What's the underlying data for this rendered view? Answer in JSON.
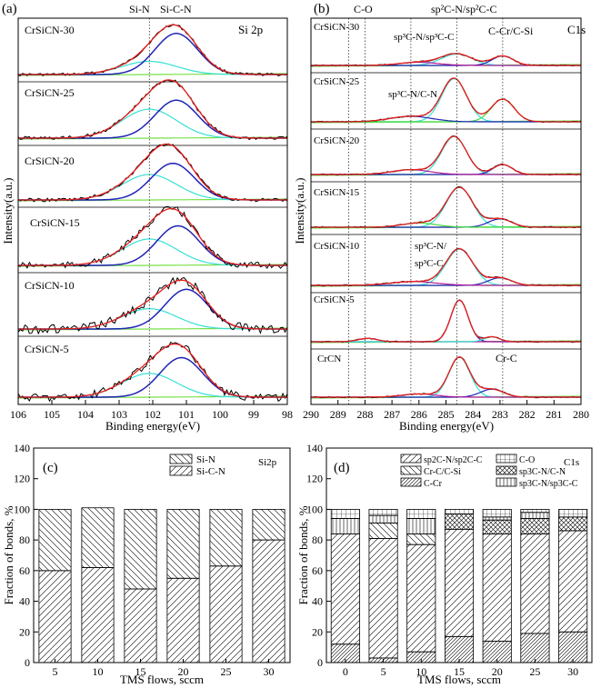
{
  "panels": {
    "a": {
      "label": "(a)",
      "tag": "Si 2p",
      "xlabel": "Binding energy(eV)",
      "ylabel": "Intensity(a.u.)",
      "xlim": [
        106,
        98
      ],
      "xticks": [
        106,
        105,
        104,
        103,
        102,
        101,
        100,
        99,
        98
      ],
      "peak_labels": [
        "Si-N",
        "Si-C-N"
      ],
      "samples": [
        "CrSiCN-30",
        "CrSiCN-25",
        "CrSiCN-20",
        "CrSiCN-15",
        "CrSiCN-10",
        "CrSiCN-5"
      ]
    },
    "b": {
      "label": "(b)",
      "tag": "C1s",
      "xlabel": "Binding energy(eV)",
      "ylabel": "Intensity(a.u.)",
      "xlim": [
        290,
        280
      ],
      "xticks": [
        290,
        289,
        288,
        287,
        286,
        285,
        284,
        283,
        282,
        281,
        280
      ],
      "samples": [
        "CrSiCN-30",
        "CrSiCN-25",
        "CrSiCN-20",
        "CrSiCN-15",
        "CrSiCN-10",
        "CrSiCN-5",
        "CrCN"
      ],
      "annotations": {
        "co": "C-O",
        "sp2_top": "sp²C-N/sp²C-C",
        "sp3_cn_sp3_cc": "sp³C-N/sp³C-C",
        "cr_c_si": "C-Cr/C-Si",
        "sp3_cn_cn": "sp³C-N/C-N",
        "sp3_cn_line1": "sp³C-N/",
        "sp3_cn_line2": "sp³C-C",
        "cr_c": "Cr-C"
      }
    }
  },
  "chart_data": [
    {
      "type": "bar",
      "label": "(c)",
      "title": "Si2p",
      "xlabel": "TMS flows, sccm",
      "ylabel": "Fraction of bonds, %",
      "ylim": [
        0,
        140
      ],
      "yticks": [
        0,
        20,
        40,
        60,
        80,
        100,
        120,
        140
      ],
      "categories": [
        "5",
        "10",
        "15",
        "20",
        "25",
        "30"
      ],
      "stacked": true,
      "series": [
        {
          "name": "Si-C-N",
          "values": [
            60,
            62,
            48,
            55,
            63,
            80
          ]
        },
        {
          "name": "Si-N",
          "values": [
            40,
            39,
            52,
            45,
            37,
            20
          ]
        }
      ],
      "legend": [
        "Si-N",
        "Si-C-N"
      ],
      "legend_position": "top-right"
    },
    {
      "type": "bar",
      "label": "(d)",
      "title": "C1s",
      "xlabel": "TMS flows, sccm",
      "ylabel": "Fraction of bonds, %",
      "ylim": [
        0,
        140
      ],
      "yticks": [
        0,
        20,
        40,
        60,
        80,
        100,
        120,
        140
      ],
      "categories": [
        "0",
        "5",
        "10",
        "15",
        "20",
        "25",
        "30"
      ],
      "stacked": true,
      "series": [
        {
          "name": "C-Cr",
          "values": [
            12,
            3,
            7,
            17,
            14,
            19,
            20
          ]
        },
        {
          "name": "sp2C-N/sp2C-C",
          "values": [
            72,
            78,
            70,
            70,
            70,
            65,
            66
          ]
        },
        {
          "name": "Cr-C/C-Si",
          "values": [
            0,
            10,
            7,
            0,
            0,
            0,
            0
          ]
        },
        {
          "name": "sp3C-N/C-N",
          "values": [
            0,
            0,
            0,
            10,
            9,
            10,
            9
          ]
        },
        {
          "name": "sp3C-N/sp3C-C",
          "values": [
            10,
            5,
            10,
            0,
            2,
            4,
            0
          ]
        },
        {
          "name": "C-O",
          "values": [
            6,
            4,
            6,
            3,
            5,
            2,
            5
          ]
        }
      ],
      "legend": [
        "sp2C-N/sp2C-C",
        "C-O",
        "Cr-C/C-Si",
        "sp3C-N/C-N",
        "C-Cr",
        "sp3C-N/sp3C-C"
      ],
      "legend_position": "top"
    }
  ],
  "colors": {
    "raw": "#000000",
    "fit": "#e8201e",
    "comp_blue": "#1f24b5",
    "comp_cyan": "#36e0d5",
    "comp_green": "#3fdc3f",
    "comp_magenta": "#b01a9a",
    "background": "#77e046"
  }
}
